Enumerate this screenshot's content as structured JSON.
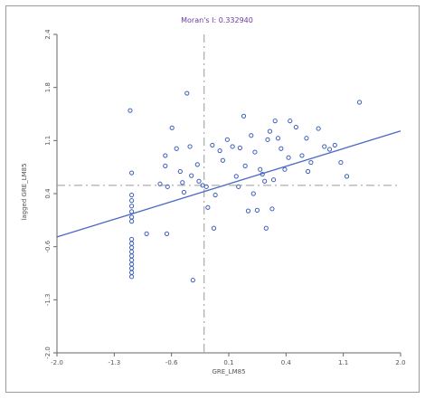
{
  "chart_data": {
    "type": "scatter",
    "title": "Moran's I: 0.332940",
    "xlabel": "GRE_LM85",
    "ylabel": "lagged GRE_LM85",
    "xlim": [
      -2.0,
      2.6
    ],
    "ylim": [
      -2.0,
      2.6
    ],
    "xticks": [
      "-2.0",
      "-1.3",
      "-0.6",
      "0.1",
      "0.4",
      "1.1",
      "2.0"
    ],
    "yticks": [
      "-2.0",
      "-1.3",
      "-0.6",
      "0.4",
      "1.1",
      "1.8",
      "2.4"
    ],
    "mean_x": -0.03,
    "mean_y": 0.42,
    "regression": {
      "slope": 0.3329,
      "intercept": 0.34
    },
    "grid": false,
    "colors": {
      "points": "#3a5fb8",
      "line": "#4a68c4",
      "mean_lines": "#9a9a9a",
      "title": "#6a3aa0"
    },
    "points": [
      [
        -1.02,
        1.5
      ],
      [
        -1.0,
        0.6
      ],
      [
        -1.0,
        0.28
      ],
      [
        -1.0,
        0.2
      ],
      [
        -1.0,
        0.12
      ],
      [
        -1.0,
        0.04
      ],
      [
        -1.0,
        -0.04
      ],
      [
        -1.0,
        -0.1
      ],
      [
        -1.0,
        -0.36
      ],
      [
        -1.0,
        -0.42
      ],
      [
        -1.0,
        -0.48
      ],
      [
        -1.0,
        -0.54
      ],
      [
        -1.0,
        -0.6
      ],
      [
        -1.0,
        -0.66
      ],
      [
        -1.0,
        -0.72
      ],
      [
        -1.0,
        -0.78
      ],
      [
        -1.0,
        -0.84
      ],
      [
        -1.0,
        -0.9
      ],
      [
        -0.8,
        -0.28
      ],
      [
        -0.62,
        0.44
      ],
      [
        -0.55,
        0.85
      ],
      [
        -0.55,
        0.7
      ],
      [
        -0.52,
        0.4
      ],
      [
        -0.53,
        -0.28
      ],
      [
        -0.46,
        1.25
      ],
      [
        -0.4,
        0.95
      ],
      [
        -0.35,
        0.62
      ],
      [
        -0.32,
        0.46
      ],
      [
        -0.3,
        0.32
      ],
      [
        -0.26,
        1.75
      ],
      [
        -0.22,
        0.98
      ],
      [
        -0.2,
        0.56
      ],
      [
        -0.18,
        -0.95
      ],
      [
        -0.12,
        0.72
      ],
      [
        -0.1,
        0.48
      ],
      [
        -0.05,
        0.42
      ],
      [
        0.0,
        0.4
      ],
      [
        0.02,
        0.1
      ],
      [
        0.08,
        1.0
      ],
      [
        0.1,
        -0.2
      ],
      [
        0.12,
        0.28
      ],
      [
        0.18,
        0.92
      ],
      [
        0.22,
        0.78
      ],
      [
        0.28,
        1.08
      ],
      [
        0.35,
        0.98
      ],
      [
        0.4,
        0.55
      ],
      [
        0.43,
        0.4
      ],
      [
        0.45,
        0.96
      ],
      [
        0.5,
        1.42
      ],
      [
        0.52,
        0.7
      ],
      [
        0.56,
        0.05
      ],
      [
        0.6,
        1.14
      ],
      [
        0.63,
        0.3
      ],
      [
        0.65,
        0.9
      ],
      [
        0.68,
        0.06
      ],
      [
        0.72,
        0.65
      ],
      [
        0.75,
        0.58
      ],
      [
        0.78,
        0.48
      ],
      [
        0.8,
        -0.2
      ],
      [
        0.82,
        1.08
      ],
      [
        0.85,
        1.2
      ],
      [
        0.88,
        0.08
      ],
      [
        0.9,
        0.5
      ],
      [
        0.92,
        1.35
      ],
      [
        0.96,
        1.1
      ],
      [
        1.0,
        0.95
      ],
      [
        1.05,
        0.65
      ],
      [
        1.1,
        0.82
      ],
      [
        1.12,
        1.35
      ],
      [
        1.2,
        1.26
      ],
      [
        1.28,
        0.85
      ],
      [
        1.34,
        1.1
      ],
      [
        1.36,
        0.62
      ],
      [
        1.4,
        0.75
      ],
      [
        1.5,
        1.24
      ],
      [
        1.58,
        0.98
      ],
      [
        1.65,
        0.94
      ],
      [
        1.72,
        1.0
      ],
      [
        1.8,
        0.75
      ],
      [
        1.88,
        0.55
      ],
      [
        2.05,
        1.62
      ]
    ]
  }
}
